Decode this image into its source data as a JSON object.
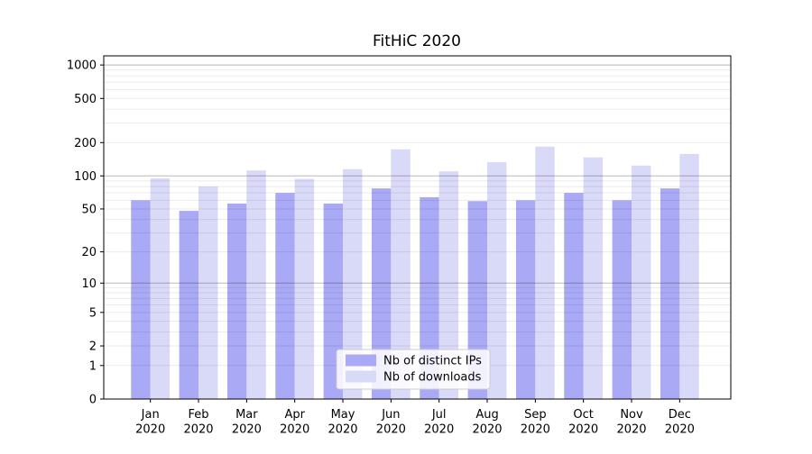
{
  "chart_data": {
    "type": "bar",
    "title": "FitHiC 2020",
    "categories": [
      "Jan",
      "Feb",
      "Mar",
      "Apr",
      "May",
      "Jun",
      "Jul",
      "Aug",
      "Sep",
      "Oct",
      "Nov",
      "Dec"
    ],
    "year_label": "2020",
    "series": [
      {
        "name": "Nb of distinct IPs",
        "color": "#a9a9f5",
        "values": [
          60,
          48,
          56,
          70,
          56,
          77,
          64,
          59,
          60,
          70,
          60,
          77
        ]
      },
      {
        "name": "Nb of downloads",
        "color": "#d9d9f8",
        "values": [
          95,
          80,
          112,
          94,
          115,
          174,
          110,
          133,
          184,
          147,
          124,
          158
        ]
      }
    ],
    "y_axis": {
      "scale": "log10(1+v)",
      "tick_values": [
        0,
        1,
        2,
        5,
        10,
        20,
        50,
        100,
        200,
        500,
        1000
      ],
      "major_grid_values": [
        10,
        100,
        1000
      ],
      "minor_grid_values": [
        1,
        2,
        3,
        4,
        5,
        6,
        7,
        8,
        9,
        20,
        30,
        40,
        50,
        60,
        70,
        80,
        90,
        200,
        300,
        400,
        500,
        600,
        700,
        800,
        900
      ],
      "ylim": [
        0,
        1210
      ]
    },
    "grid": true,
    "legend": {
      "position": "lower center"
    },
    "colors": {
      "major_grid": "rgba(0,0,0,0.28)",
      "minor_grid": "rgba(0,0,0,0.08)",
      "spine": "#000000",
      "legend_border": "#cccccc",
      "legend_bg": "#ffffff"
    }
  }
}
